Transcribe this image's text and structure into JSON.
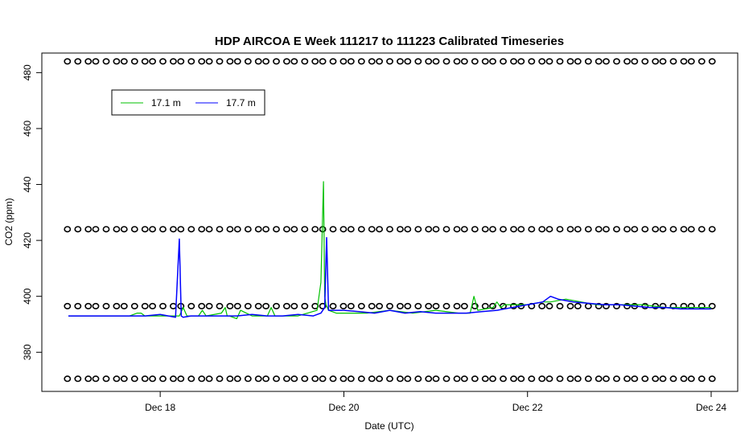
{
  "chart_data": {
    "type": "line",
    "title": "HDP AIRCOA E  Week 111217 to 111223  Calibrated Timeseries",
    "xlabel": "Date (UTC)",
    "ylabel": "CO2 (ppm)",
    "xlim": [
      "2011-12-17T00:00",
      "2011-12-24T00:00"
    ],
    "ylim": [
      366,
      487
    ],
    "x_ticks": [
      "Dec 18",
      "Dec 20",
      "Dec 22",
      "Dec 24"
    ],
    "x_tick_dates": [
      "2011-12-18T00:00",
      "2011-12-20T00:00",
      "2011-12-22T00:00",
      "2011-12-24T00:00"
    ],
    "y_ticks": [
      380,
      400,
      420,
      440,
      460,
      480
    ],
    "legend": {
      "position": "top-left",
      "entries": [
        {
          "name": "17.1 m",
          "color": "#00c000"
        },
        {
          "name": "17.7 m",
          "color": "#0000ff"
        }
      ]
    },
    "series": [
      {
        "name": "17.1 m",
        "color": "#00c000",
        "x": [
          "2011-12-17T00:00",
          "2011-12-17T08:00",
          "2011-12-17T16:00",
          "2011-12-17T18:00",
          "2011-12-17T19:00",
          "2011-12-17T20:00",
          "2011-12-17T21:00",
          "2011-12-18T00:00",
          "2011-12-18T05:00",
          "2011-12-18T06:00",
          "2011-12-18T07:00",
          "2011-12-18T10:00",
          "2011-12-18T11:00",
          "2011-12-18T12:00",
          "2011-12-18T16:00",
          "2011-12-18T17:00",
          "2011-12-18T17:30",
          "2011-12-18T18:00",
          "2011-12-18T20:00",
          "2011-12-18T21:00",
          "2011-12-19T00:00",
          "2011-12-19T04:00",
          "2011-12-19T05:00",
          "2011-12-19T06:00",
          "2011-12-19T12:00",
          "2011-12-19T17:00",
          "2011-12-19T18:00",
          "2011-12-19T18:40",
          "2011-12-19T19:00",
          "2011-12-19T19:20",
          "2011-12-19T20:00",
          "2011-12-19T22:00",
          "2011-12-20T00:00",
          "2011-12-20T06:00",
          "2011-12-20T12:00",
          "2011-12-20T18:00",
          "2011-12-21T00:00",
          "2011-12-21T06:00",
          "2011-12-21T09:00",
          "2011-12-21T10:00",
          "2011-12-21T11:00",
          "2011-12-21T15:00",
          "2011-12-21T16:00",
          "2011-12-21T17:00",
          "2011-12-21T18:00",
          "2011-12-22T00:00",
          "2011-12-22T04:00",
          "2011-12-22T06:00",
          "2011-12-22T10:00",
          "2011-12-22T14:00",
          "2011-12-22T18:00",
          "2011-12-23T00:00",
          "2011-12-23T06:00",
          "2011-12-23T12:00",
          "2011-12-23T18:00",
          "2011-12-24T00:00"
        ],
        "values": [
          393,
          393,
          393,
          394,
          394,
          393,
          393,
          393,
          393,
          396,
          393,
          393,
          395,
          393,
          394,
          396,
          393,
          393,
          392,
          395,
          393,
          393,
          396,
          393,
          393,
          395,
          405,
          441,
          400,
          397,
          395,
          394,
          394,
          394,
          395,
          394,
          395,
          394,
          394,
          400,
          395,
          396,
          398,
          396,
          397,
          397,
          398,
          398,
          399,
          398,
          397,
          397,
          397,
          396,
          396,
          396
        ]
      },
      {
        "name": "17.7 m",
        "color": "#0000ff",
        "x": [
          "2011-12-17T00:00",
          "2011-12-17T04:00",
          "2011-12-17T08:00",
          "2011-12-17T12:00",
          "2011-12-17T16:00",
          "2011-12-17T20:00",
          "2011-12-18T00:00",
          "2011-12-18T04:00",
          "2011-12-18T05:00",
          "2011-12-18T05:30",
          "2011-12-18T06:00",
          "2011-12-18T08:00",
          "2011-12-18T12:00",
          "2011-12-18T16:00",
          "2011-12-18T20:00",
          "2011-12-19T00:00",
          "2011-12-19T04:00",
          "2011-12-19T08:00",
          "2011-12-19T12:00",
          "2011-12-19T16:00",
          "2011-12-19T18:00",
          "2011-12-19T19:00",
          "2011-12-19T19:30",
          "2011-12-19T20:00",
          "2011-12-20T00:00",
          "2011-12-20T04:00",
          "2011-12-20T08:00",
          "2011-12-20T12:00",
          "2011-12-20T16:00",
          "2011-12-20T20:00",
          "2011-12-21T00:00",
          "2011-12-21T04:00",
          "2011-12-21T08:00",
          "2011-12-21T12:00",
          "2011-12-21T16:00",
          "2011-12-21T20:00",
          "2011-12-22T00:00",
          "2011-12-22T04:00",
          "2011-12-22T06:00",
          "2011-12-22T08:00",
          "2011-12-22T12:00",
          "2011-12-22T16:00",
          "2011-12-22T20:00",
          "2011-12-23T00:00",
          "2011-12-23T04:00",
          "2011-12-23T08:00",
          "2011-12-23T12:00",
          "2011-12-23T16:00",
          "2011-12-23T20:00",
          "2011-12-24T00:00"
        ],
        "values": [
          393,
          393,
          393,
          393,
          393,
          393,
          393.5,
          392.5,
          420.5,
          393,
          392.5,
          393,
          393,
          393,
          393,
          393.5,
          393,
          393,
          393.5,
          393,
          394,
          396,
          421,
          395,
          395,
          394.5,
          394,
          395,
          394,
          394.5,
          394,
          394,
          394,
          394.5,
          395,
          396,
          397,
          398,
          400,
          399,
          398,
          397.5,
          397,
          397,
          396.5,
          396,
          396,
          395.5,
          395.5,
          395.5
        ]
      },
      {
        "name": "",
        "marker": "circle-open",
        "color": "#000000",
        "x_start": "2011-12-17T00:00",
        "x_end": "2011-12-24T00:00",
        "levels": [
          370.5,
          396.5,
          424,
          484
        ]
      }
    ]
  }
}
